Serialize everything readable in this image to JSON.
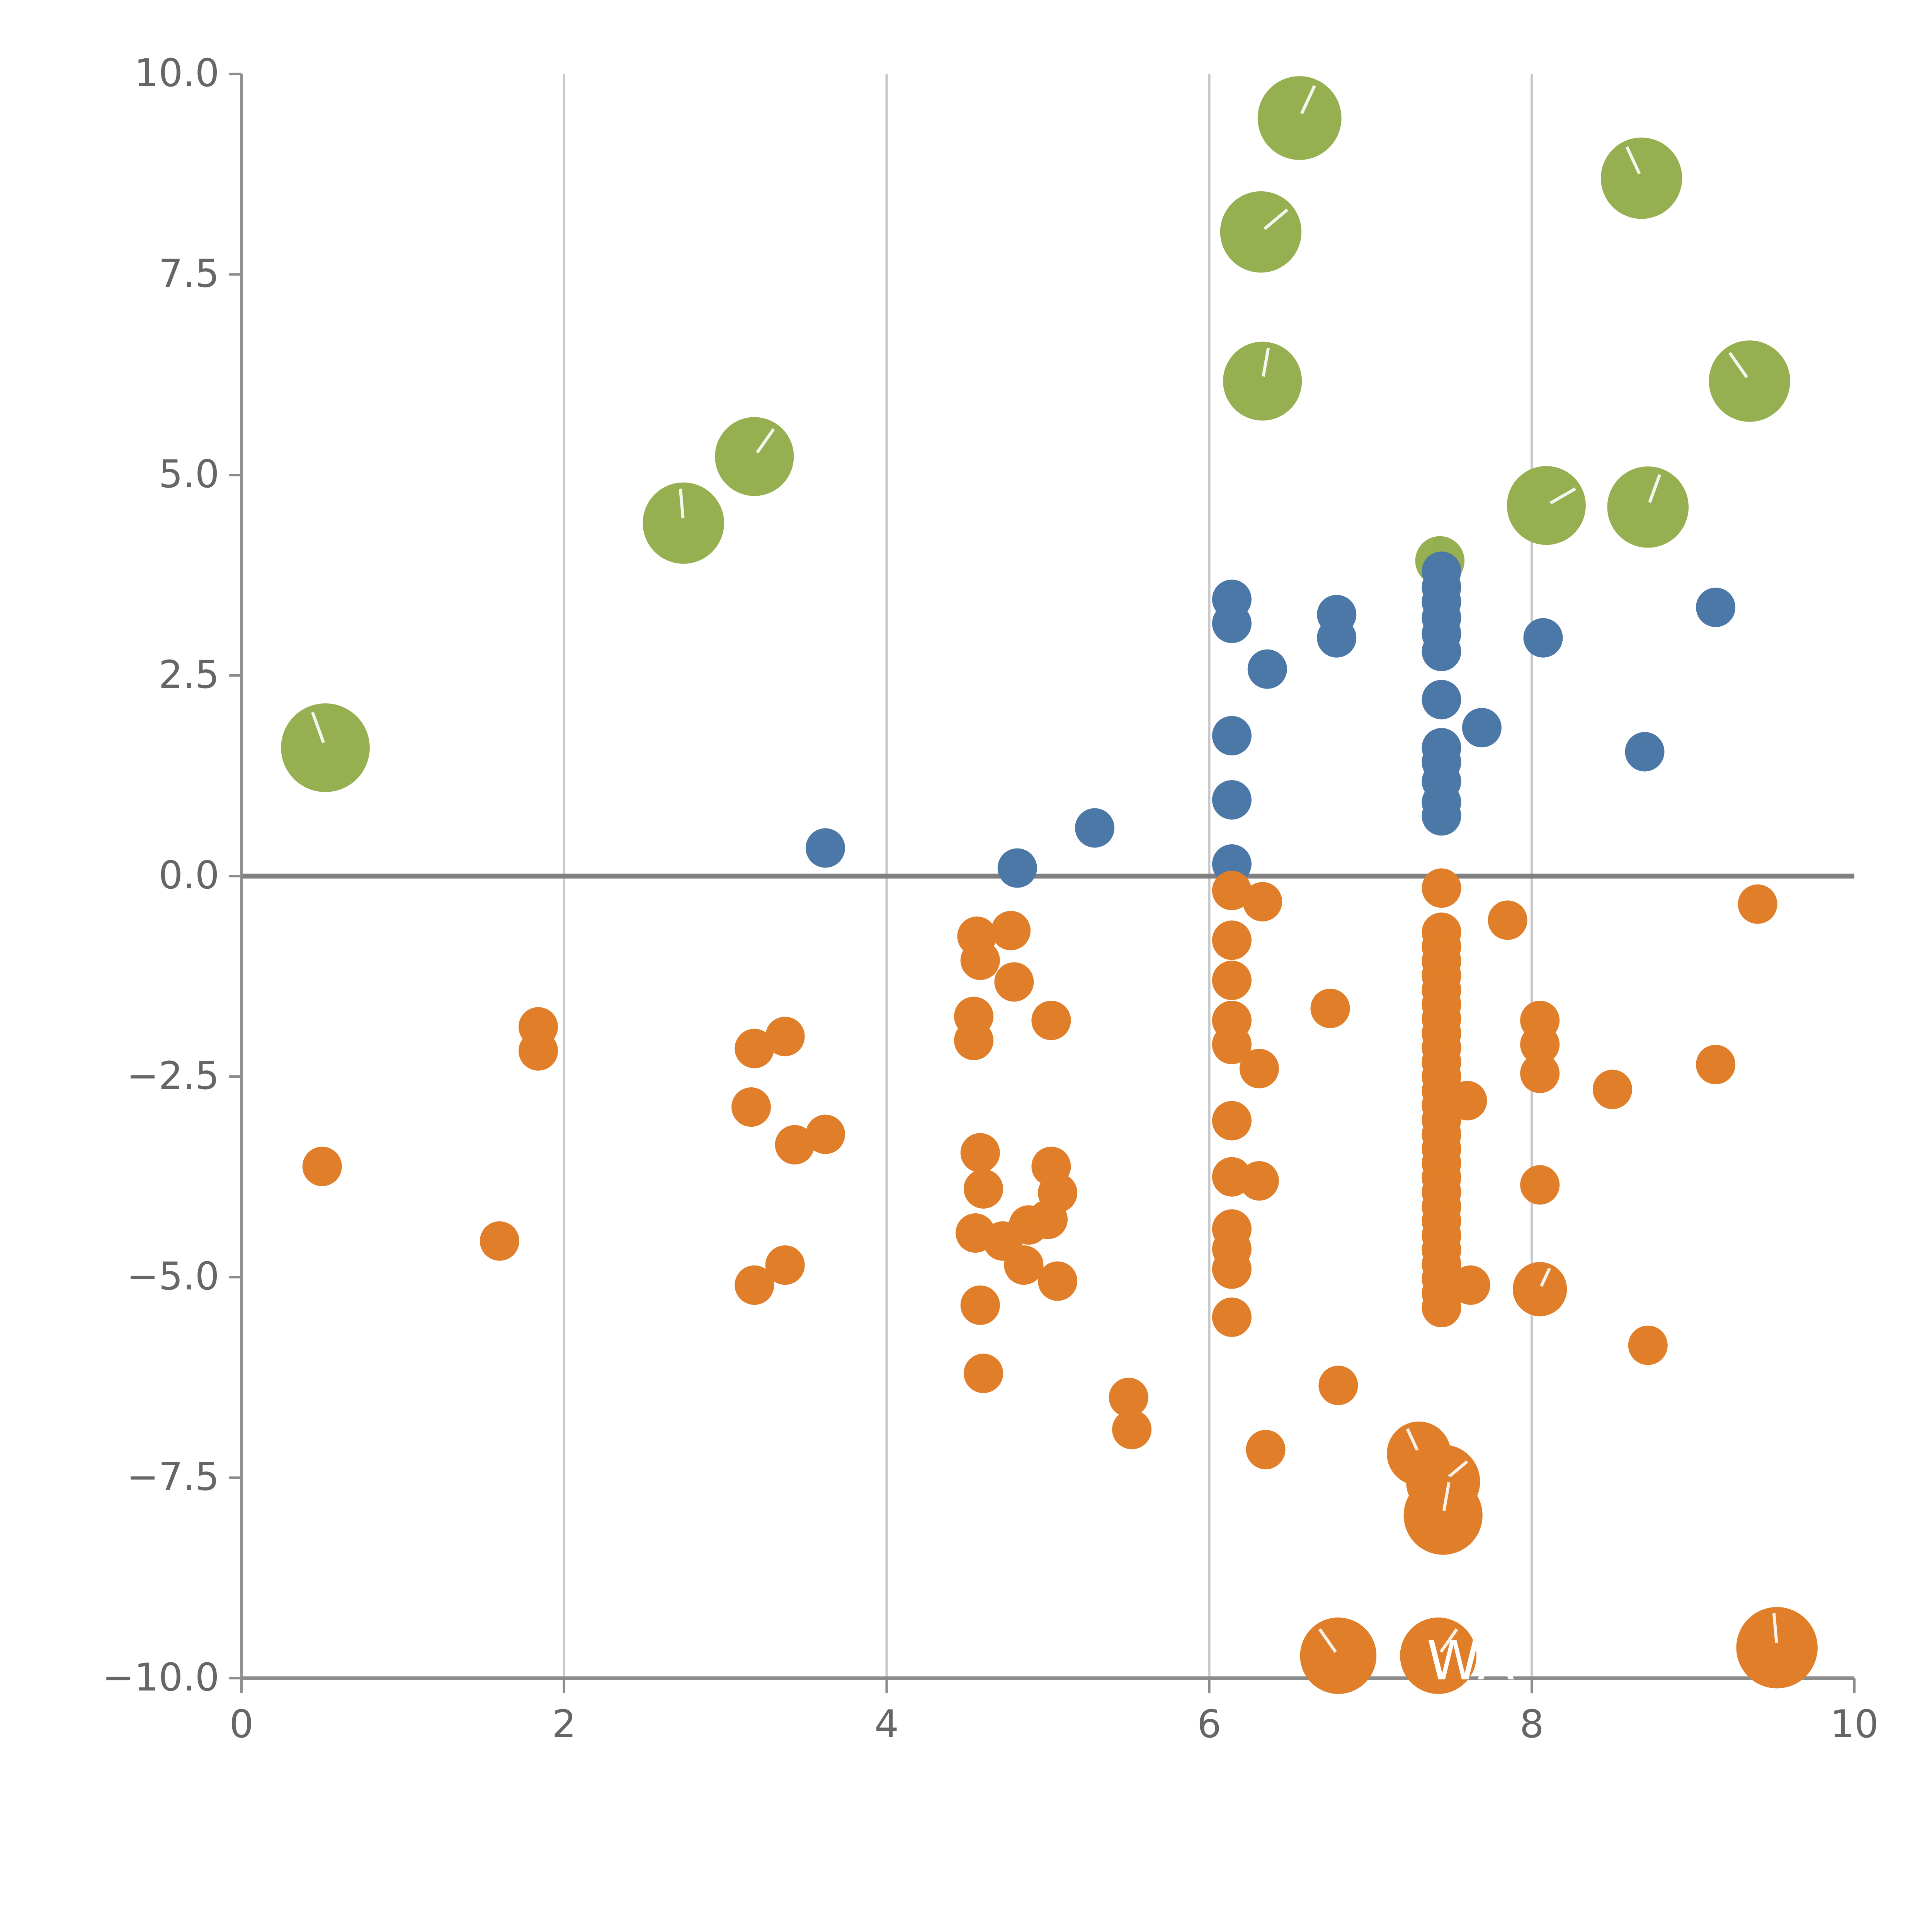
{
  "chart_data": {
    "type": "scatter",
    "title": "",
    "xlabel": "",
    "ylabel": "",
    "xlim": [
      0,
      10
    ],
    "ylim": [
      -10,
      10
    ],
    "x_ticks": [
      0,
      2,
      4,
      6,
      8,
      10
    ],
    "x_tick_labels": [
      "0",
      "2",
      "4",
      "6",
      "8",
      "10"
    ],
    "y_ticks": [
      10.0,
      7.5,
      5.0,
      2.5,
      0.0,
      -2.5,
      -5.0,
      -7.5,
      -10.0
    ],
    "y_tick_labels": [
      "10.0",
      "7.5",
      "5.0",
      "2.5",
      "0.0",
      "−2.5",
      "−5.0",
      "−7.5",
      "−10.0"
    ],
    "x_grid": [
      2,
      4,
      6,
      8
    ],
    "zero_line": true,
    "legend": false,
    "style": {
      "grid_color": "#c9c9c9",
      "zero_line_color": "#808080",
      "axis_color": "#8c8c8c",
      "tick_label_color": "#666666",
      "background": "#ffffff"
    },
    "series": [
      {
        "name": "green",
        "color": "#96b051",
        "r": 32,
        "points": [
          {
            "x": 6.56,
            "y": 9.45,
            "r": 34
          },
          {
            "x": 8.68,
            "y": 8.7,
            "r": 33
          },
          {
            "x": 6.32,
            "y": 8.03,
            "r": 33
          },
          {
            "x": 6.33,
            "y": 6.17,
            "r": 32
          },
          {
            "x": 9.35,
            "y": 6.17,
            "r": 33
          },
          {
            "x": 3.18,
            "y": 5.23,
            "r": 32
          },
          {
            "x": 2.74,
            "y": 4.4,
            "r": 33
          },
          {
            "x": 8.09,
            "y": 4.62,
            "r": 32
          },
          {
            "x": 8.72,
            "y": 4.6,
            "r": 33
          },
          {
            "x": 7.43,
            "y": 3.93,
            "r": 20
          },
          {
            "x": 0.52,
            "y": 1.6,
            "r": 36
          }
        ]
      },
      {
        "name": "blue",
        "color": "#4c78a8",
        "r": 16,
        "points": [
          {
            "x": 3.62,
            "y": 0.35
          },
          {
            "x": 4.81,
            "y": 0.1
          },
          {
            "x": 5.29,
            "y": 0.6
          },
          {
            "x": 6.14,
            "y": 3.45
          },
          {
            "x": 6.14,
            "y": 3.15
          },
          {
            "x": 6.36,
            "y": 2.58
          },
          {
            "x": 6.14,
            "y": 1.75
          },
          {
            "x": 6.14,
            "y": 0.95
          },
          {
            "x": 6.14,
            "y": 0.15
          },
          {
            "x": 6.79,
            "y": 3.26
          },
          {
            "x": 6.79,
            "y": 2.97
          },
          {
            "x": 7.44,
            "y": 3.8
          },
          {
            "x": 7.44,
            "y": 3.6
          },
          {
            "x": 7.44,
            "y": 3.42
          },
          {
            "x": 7.44,
            "y": 3.22
          },
          {
            "x": 7.44,
            "y": 3.02
          },
          {
            "x": 7.44,
            "y": 2.8
          },
          {
            "x": 7.44,
            "y": 2.2
          },
          {
            "x": 7.44,
            "y": 1.6
          },
          {
            "x": 7.44,
            "y": 1.42
          },
          {
            "x": 7.44,
            "y": 1.18
          },
          {
            "x": 7.44,
            "y": 0.92
          },
          {
            "x": 7.44,
            "y": 0.75
          },
          {
            "x": 7.69,
            "y": 1.85
          },
          {
            "x": 8.07,
            "y": 2.97
          },
          {
            "x": 8.7,
            "y": 1.55
          },
          {
            "x": 9.14,
            "y": 3.35
          }
        ]
      },
      {
        "name": "orange",
        "color": "#e07e29",
        "r": 16,
        "points": [
          {
            "x": 0.5,
            "y": -3.62
          },
          {
            "x": 1.6,
            "y": -4.55
          },
          {
            "x": 1.84,
            "y": -1.88
          },
          {
            "x": 1.84,
            "y": -2.18
          },
          {
            "x": 3.18,
            "y": -2.15
          },
          {
            "x": 3.16,
            "y": -2.88
          },
          {
            "x": 3.37,
            "y": -2.0
          },
          {
            "x": 3.43,
            "y": -3.35
          },
          {
            "x": 3.62,
            "y": -3.22
          },
          {
            "x": 3.18,
            "y": -5.1
          },
          {
            "x": 3.37,
            "y": -4.85
          },
          {
            "x": 4.56,
            "y": -0.75
          },
          {
            "x": 4.77,
            "y": -0.68
          },
          {
            "x": 4.58,
            "y": -1.05
          },
          {
            "x": 4.79,
            "y": -1.32
          },
          {
            "x": 4.54,
            "y": -1.75
          },
          {
            "x": 4.54,
            "y": -2.05
          },
          {
            "x": 5.02,
            "y": -1.8
          },
          {
            "x": 4.58,
            "y": -3.45
          },
          {
            "x": 4.6,
            "y": -3.9
          },
          {
            "x": 4.55,
            "y": -4.45
          },
          {
            "x": 4.72,
            "y": -4.55
          },
          {
            "x": 4.88,
            "y": -4.35
          },
          {
            "x": 4.85,
            "y": -4.85
          },
          {
            "x": 5.02,
            "y": -3.62
          },
          {
            "x": 5.06,
            "y": -3.95
          },
          {
            "x": 5.0,
            "y": -4.28
          },
          {
            "x": 5.06,
            "y": -5.05
          },
          {
            "x": 4.58,
            "y": -5.35
          },
          {
            "x": 4.6,
            "y": -6.2
          },
          {
            "x": 5.5,
            "y": -6.5
          },
          {
            "x": 5.52,
            "y": -6.9
          },
          {
            "x": 6.14,
            "y": -0.18
          },
          {
            "x": 6.33,
            "y": -0.32
          },
          {
            "x": 6.14,
            "y": -0.8
          },
          {
            "x": 6.14,
            "y": -1.3
          },
          {
            "x": 6.14,
            "y": -1.8
          },
          {
            "x": 6.14,
            "y": -2.1
          },
          {
            "x": 6.31,
            "y": -2.4
          },
          {
            "x": 6.14,
            "y": -3.05
          },
          {
            "x": 6.14,
            "y": -3.75
          },
          {
            "x": 6.31,
            "y": -3.8
          },
          {
            "x": 6.14,
            "y": -4.4
          },
          {
            "x": 6.14,
            "y": -4.65
          },
          {
            "x": 6.14,
            "y": -4.9
          },
          {
            "x": 6.14,
            "y": -5.5
          },
          {
            "x": 6.35,
            "y": -7.15
          },
          {
            "x": 6.75,
            "y": -1.65
          },
          {
            "x": 6.8,
            "y": -6.35
          },
          {
            "x": 7.44,
            "y": -0.15
          },
          {
            "x": 7.44,
            "y": -0.7
          },
          {
            "x": 7.44,
            "y": -0.88
          },
          {
            "x": 7.44,
            "y": -1.06
          },
          {
            "x": 7.44,
            "y": -1.24
          },
          {
            "x": 7.44,
            "y": -1.42
          },
          {
            "x": 7.44,
            "y": -1.6
          },
          {
            "x": 7.44,
            "y": -1.78
          },
          {
            "x": 7.44,
            "y": -1.96
          },
          {
            "x": 7.44,
            "y": -2.14
          },
          {
            "x": 7.44,
            "y": -2.32
          },
          {
            "x": 7.44,
            "y": -2.5
          },
          {
            "x": 7.44,
            "y": -2.68
          },
          {
            "x": 7.44,
            "y": -2.86
          },
          {
            "x": 7.44,
            "y": -3.04
          },
          {
            "x": 7.44,
            "y": -3.22
          },
          {
            "x": 7.44,
            "y": -3.4
          },
          {
            "x": 7.44,
            "y": -3.58
          },
          {
            "x": 7.44,
            "y": -3.76
          },
          {
            "x": 7.44,
            "y": -3.94
          },
          {
            "x": 7.44,
            "y": -4.12
          },
          {
            "x": 7.44,
            "y": -4.3
          },
          {
            "x": 7.44,
            "y": -4.48
          },
          {
            "x": 7.44,
            "y": -4.66
          },
          {
            "x": 7.44,
            "y": -4.84
          },
          {
            "x": 7.44,
            "y": -5.02
          },
          {
            "x": 7.44,
            "y": -5.2
          },
          {
            "x": 7.44,
            "y": -5.38
          },
          {
            "x": 7.6,
            "y": -2.8
          },
          {
            "x": 7.62,
            "y": -5.1
          },
          {
            "x": 7.85,
            "y": -0.55
          },
          {
            "x": 8.05,
            "y": -1.8
          },
          {
            "x": 8.05,
            "y": -2.1
          },
          {
            "x": 8.05,
            "y": -2.46
          },
          {
            "x": 8.05,
            "y": -3.85
          },
          {
            "x": 8.05,
            "y": -5.15,
            "r": 22
          },
          {
            "x": 8.5,
            "y": -2.66
          },
          {
            "x": 8.72,
            "y": -5.85
          },
          {
            "x": 9.14,
            "y": -2.35
          },
          {
            "x": 9.4,
            "y": -0.35
          },
          {
            "x": 7.3,
            "y": -7.2,
            "r": 26
          },
          {
            "x": 7.45,
            "y": -7.55,
            "r": 30
          },
          {
            "x": 7.45,
            "y": -7.97,
            "r": 32
          },
          {
            "x": 6.8,
            "y": -9.72,
            "r": 31
          },
          {
            "x": 7.42,
            "y": -9.72,
            "r": 31
          },
          {
            "x": 9.52,
            "y": -9.62,
            "r": 33
          }
        ]
      }
    ],
    "annotations": [
      {
        "text": "WA",
        "x": 7.62,
        "y": -9.8,
        "color": "#ffffff",
        "font_size": 44
      }
    ]
  }
}
